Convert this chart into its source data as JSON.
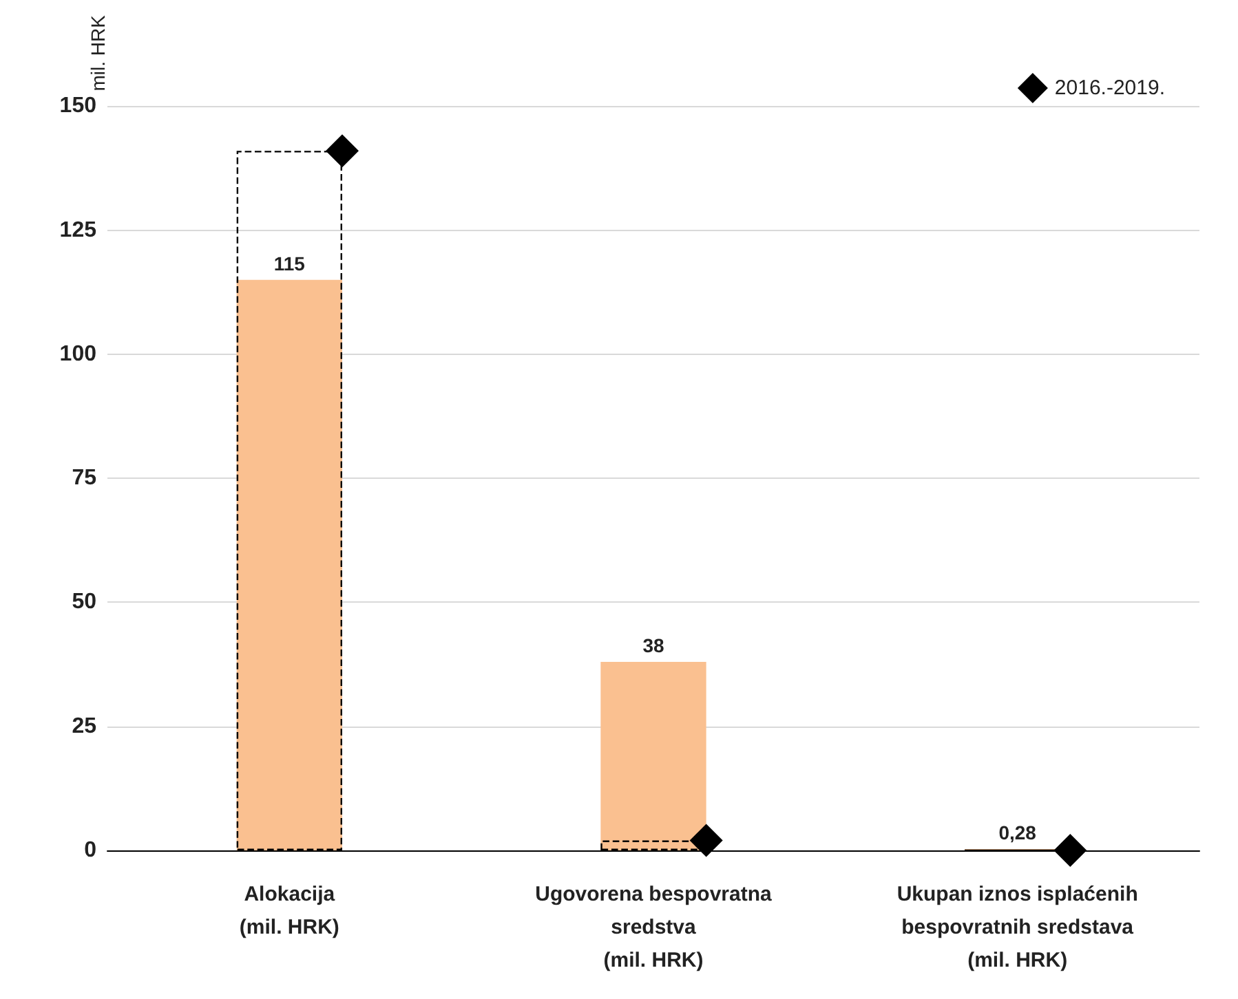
{
  "chart_data": {
    "type": "bar",
    "ylabel": "mil. HRK",
    "categories": [
      "Alokacija\n(mil. HRK)",
      "Ugovorena bespovratna\nsredstva\n(mil. HRK)",
      "Ukupan iznos isplaćenih\nbespovratnih sredstava\n(mil. HRK)"
    ],
    "series": [
      {
        "color": "#fac090",
        "values": [
          115,
          38,
          0.28
        ],
        "value_labels": [
          "115",
          "38",
          "0,28"
        ]
      },
      {
        "color": "#000000",
        "values": [
          141,
          2,
          0
        ],
        "line_style": "dashed"
      },
      {
        "type": "scatter",
        "name": "2016.-2019.",
        "color": "#000000",
        "values": [
          141,
          2,
          0
        ],
        "marker": "diamond"
      }
    ],
    "ylim": [
      0,
      150
    ],
    "yticks": [
      0,
      25,
      50,
      75,
      100,
      125,
      150
    ],
    "grid": "y",
    "legend": "top right"
  }
}
